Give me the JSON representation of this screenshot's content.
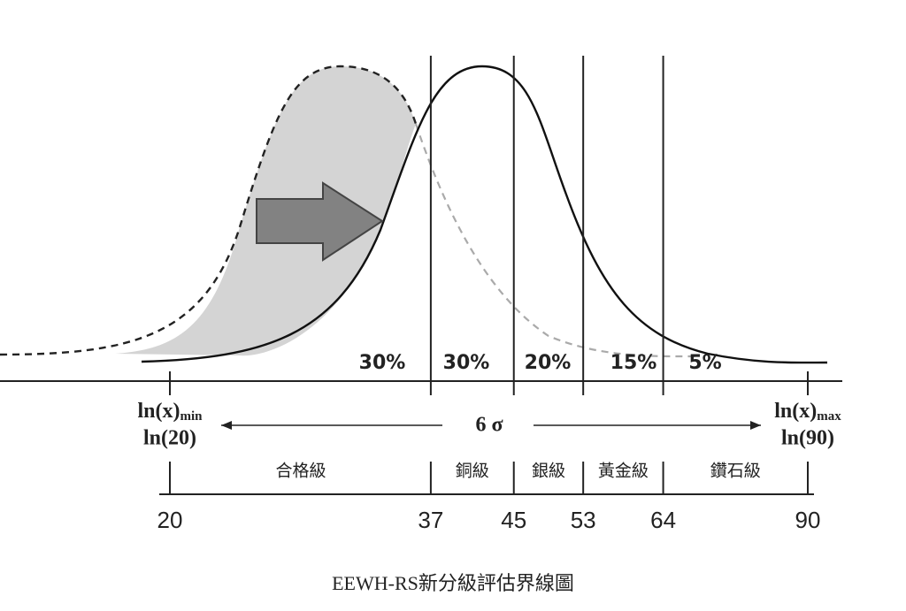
{
  "diagram": {
    "bands": [
      {
        "share": "30%",
        "grade": "合格級"
      },
      {
        "share": "30%",
        "grade": "銅級"
      },
      {
        "share": "20%",
        "grade": "銀級"
      },
      {
        "share": "15%",
        "grade": "黃金級"
      },
      {
        "share": "5%",
        "grade": "鑽石級"
      }
    ],
    "left_label": {
      "var": "ln(x)",
      "sub": "min",
      "value": "ln(20)"
    },
    "right_label": {
      "var": "ln(x)",
      "sub": "max",
      "value": "ln(90)"
    },
    "span_label": "6 σ",
    "scale": {
      "ticks": [
        20,
        37,
        45,
        53,
        64,
        90
      ],
      "log": true
    },
    "caption": "EEWH-RS新分級評估界線圖"
  }
}
